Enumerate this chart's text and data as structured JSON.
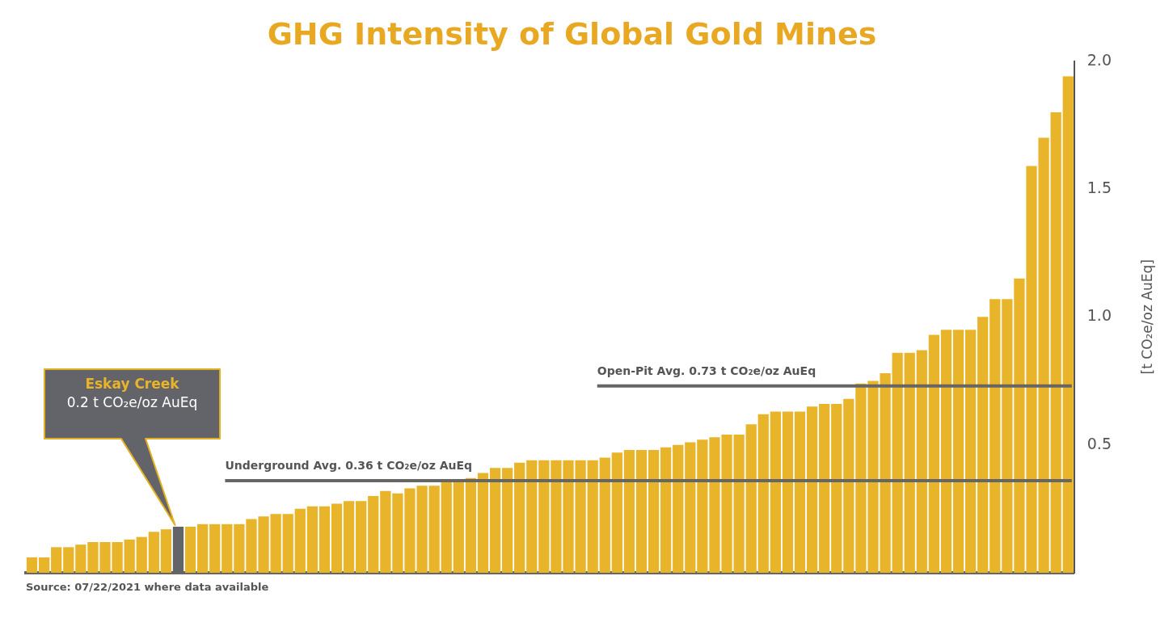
{
  "chart_data": {
    "type": "bar",
    "title": "GHG Intensity of Global Gold Mines",
    "ylabel": "[t CO₂e/oz AuEq]",
    "categories": [
      null,
      null,
      null,
      null,
      null,
      null,
      null,
      null,
      null,
      null,
      null,
      null,
      null,
      null,
      null,
      null,
      null,
      null,
      null,
      null,
      null,
      null,
      null,
      null,
      null,
      null,
      null,
      null,
      null,
      null,
      null,
      null,
      null,
      null,
      null,
      null,
      null,
      null,
      null,
      null,
      null,
      null,
      null,
      null,
      null,
      null,
      null,
      null,
      null,
      null,
      null,
      null,
      null,
      null,
      null,
      null,
      null,
      null,
      null,
      null,
      null,
      null,
      null,
      null,
      null,
      null,
      null,
      null,
      null,
      null,
      null,
      null,
      null,
      null,
      null,
      null,
      null,
      null,
      null,
      null,
      null,
      null,
      null,
      null,
      null,
      null
    ],
    "values": [
      0.06,
      0.06,
      0.1,
      0.1,
      0.11,
      0.12,
      0.12,
      0.12,
      0.13,
      0.14,
      0.16,
      0.17,
      0.18,
      0.18,
      0.19,
      0.19,
      0.19,
      0.19,
      0.21,
      0.22,
      0.23,
      0.23,
      0.25,
      0.26,
      0.26,
      0.27,
      0.28,
      0.28,
      0.3,
      0.32,
      0.31,
      0.33,
      0.34,
      0.34,
      0.36,
      0.36,
      0.37,
      0.39,
      0.41,
      0.41,
      0.43,
      0.44,
      0.44,
      0.44,
      0.44,
      0.44,
      0.44,
      0.45,
      0.47,
      0.48,
      0.48,
      0.48,
      0.49,
      0.5,
      0.51,
      0.52,
      0.53,
      0.54,
      0.54,
      0.58,
      0.62,
      0.63,
      0.63,
      0.63,
      0.65,
      0.66,
      0.66,
      0.68,
      0.74,
      0.75,
      0.78,
      0.86,
      0.86,
      0.87,
      0.93,
      0.95,
      0.95,
      0.95,
      1.0,
      1.07,
      1.07,
      1.15,
      1.59,
      1.7,
      1.8,
      1.94
    ],
    "colors": [
      "#e8b42a",
      "#e8b42a",
      "#e8b42a",
      "#e8b42a",
      "#e8b42a",
      "#e8b42a",
      "#e8b42a",
      "#e8b42a",
      "#e8b42a",
      "#e8b42a",
      "#e8b42a",
      "#e8b42a",
      "#63646a",
      "#e8b42a",
      "#e8b42a",
      "#e8b42a",
      "#e8b42a",
      "#e8b42a",
      "#e8b42a",
      "#e8b42a",
      "#e8b42a",
      "#e8b42a",
      "#e8b42a",
      "#e8b42a",
      "#e8b42a",
      "#e8b42a",
      "#e8b42a",
      "#e8b42a",
      "#e8b42a",
      "#e8b42a",
      "#e8b42a",
      "#e8b42a",
      "#e8b42a",
      "#e8b42a",
      "#e8b42a",
      "#e8b42a",
      "#e8b42a",
      "#e8b42a",
      "#e8b42a",
      "#e8b42a",
      "#e8b42a",
      "#e8b42a",
      "#e8b42a",
      "#e8b42a",
      "#e8b42a",
      "#e8b42a",
      "#e8b42a",
      "#e8b42a",
      "#e8b42a",
      "#e8b42a",
      "#e8b42a",
      "#e8b42a",
      "#e8b42a",
      "#e8b42a",
      "#e8b42a",
      "#e8b42a",
      "#e8b42a",
      "#e8b42a",
      "#e8b42a",
      "#e8b42a",
      "#e8b42a",
      "#e8b42a",
      "#e8b42a",
      "#e8b42a",
      "#e8b42a",
      "#e8b42a",
      "#e8b42a",
      "#e8b42a",
      "#e8b42a",
      "#e8b42a",
      "#e8b42a",
      "#e8b42a",
      "#e8b42a",
      "#e8b42a",
      "#e8b42a",
      "#e8b42a",
      "#e8b42a",
      "#e8b42a",
      "#e8b42a",
      "#e8b42a",
      "#e8b42a",
      "#e8b42a",
      "#e8b42a",
      "#e8b42a",
      "#e8b42a",
      "#e8b42a"
    ],
    "ylim": [
      0,
      2
    ],
    "yticks": [
      {
        "value": 0.5,
        "label": "0.5"
      },
      {
        "value": 1,
        "label": "1.0"
      },
      {
        "value": 1.5,
        "label": "1.5"
      },
      {
        "value": 2,
        "label": "2.0"
      }
    ],
    "ref_lines": [
      {
        "axis": "y",
        "value": 0.36,
        "label": "Underground Avg. 0.36 t CO₂e/oz AuEq",
        "color": "#666666"
      },
      {
        "axis": "y",
        "value": 0.73,
        "label": "Open-Pit Avg. 0.73 t CO₂e/oz AuEq",
        "color": "#666666"
      }
    ],
    "annotations": [
      "Eskay Creek",
      "0.2 t CO₂e/oz AuEq",
      "Source: 07/22/2021 where data available"
    ],
    "legend": false
  }
}
